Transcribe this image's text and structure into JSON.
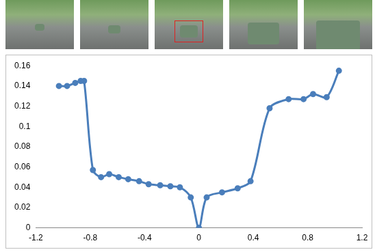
{
  "chart_data": {
    "type": "line",
    "x": [
      -1.03,
      -0.97,
      -0.91,
      -0.87,
      -0.845,
      -0.78,
      -0.72,
      -0.66,
      -0.59,
      -0.52,
      -0.44,
      -0.37,
      -0.285,
      -0.21,
      -0.14,
      -0.06,
      0,
      0.057,
      0.17,
      0.285,
      0.38,
      0.52,
      0.66,
      0.77,
      0.84,
      0.94,
      1.03
    ],
    "values": [
      0.14,
      0.14,
      0.143,
      0.145,
      0.145,
      0.057,
      0.05,
      0.053,
      0.05,
      0.048,
      0.046,
      0.043,
      0.042,
      0.041,
      0.04,
      0.03,
      0,
      0.03,
      0.035,
      0.039,
      0.046,
      0.118,
      0.127,
      0.127,
      0.132,
      0.129,
      0.155
    ],
    "color": "#4a7ebb",
    "marker": "circle",
    "grid": false,
    "xlim": [
      -1.2,
      1.2
    ],
    "xticks": [
      -1.2,
      -0.8,
      -0.4,
      0,
      0.4,
      0.8,
      1.2
    ],
    "ylim": [
      0,
      0.16
    ],
    "yticks": [
      0,
      0.02,
      0.04,
      0.06,
      0.08,
      0.1,
      0.12,
      0.14,
      0.16
    ]
  }
}
